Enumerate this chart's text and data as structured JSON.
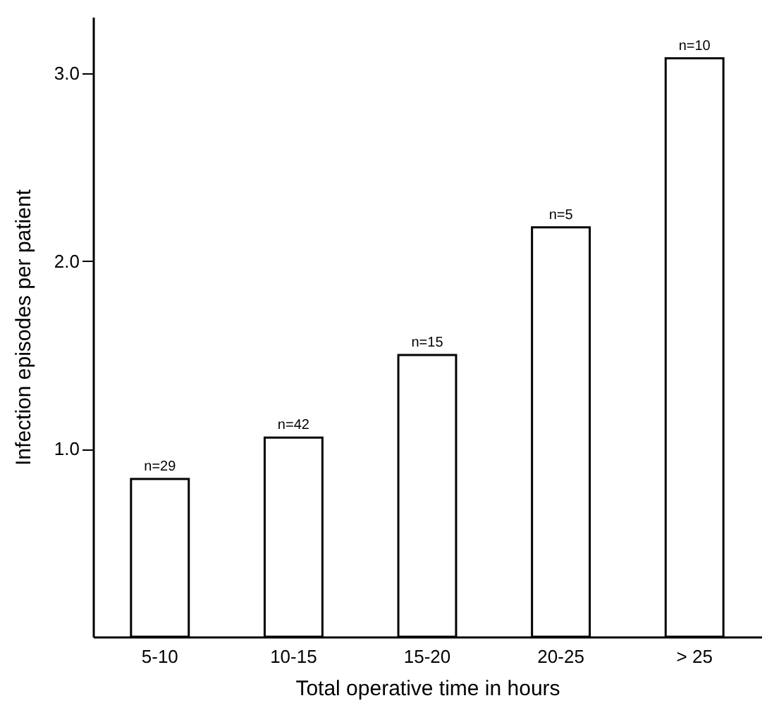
{
  "chart_data": {
    "type": "bar",
    "xlabel": "Total operative time in hours",
    "ylabel": "Infection episodes per patient",
    "categories": [
      "5-10",
      "10-15",
      "15-20",
      "20-25",
      "> 25"
    ],
    "values": [
      0.84,
      1.06,
      1.5,
      2.18,
      3.08
    ],
    "color": "#ffffff",
    "ylim": [
      0,
      3.3
    ],
    "yticks": [
      {
        "value": 1,
        "label": "1.0"
      },
      {
        "value": 2,
        "label": "2.0"
      },
      {
        "value": 3,
        "label": "3.0"
      }
    ],
    "grid": false,
    "annotations": [
      {
        "text": "n=29",
        "x": "5-10",
        "y": 0.84
      },
      {
        "text": "n=42",
        "x": "10-15",
        "y": 1.06
      },
      {
        "text": "n=15",
        "x": "15-20",
        "y": 1.5
      },
      {
        "text": "n=5",
        "x": "20-25",
        "y": 2.18
      },
      {
        "text": "n=10",
        "x": "> 25",
        "y": 3.08
      }
    ]
  }
}
